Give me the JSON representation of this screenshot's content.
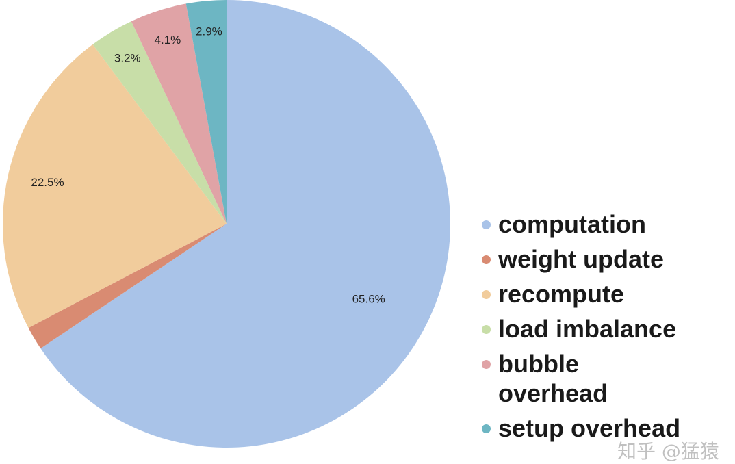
{
  "chart_data": {
    "type": "pie",
    "title": "",
    "slices": [
      {
        "label": "computation",
        "value": 65.6,
        "value_label": "65.6%",
        "color": "#a9c3e8"
      },
      {
        "label": "weight update",
        "value": 1.7,
        "value_label": "",
        "color": "#d98b72"
      },
      {
        "label": "recompute",
        "value": 22.5,
        "value_label": "22.5%",
        "color": "#f1cc9c"
      },
      {
        "label": "load imbalance",
        "value": 3.2,
        "value_label": "3.2%",
        "color": "#c8dea8"
      },
      {
        "label": "bubble overhead",
        "value": 4.1,
        "value_label": "4.1%",
        "color": "#e0a3a6"
      },
      {
        "label": "setup overhead",
        "value": 2.9,
        "value_label": "2.9%",
        "color": "#6db6c3"
      }
    ],
    "start_angle": "12 o'clock",
    "direction": "clockwise",
    "legend_position": "right"
  },
  "legend": {
    "items": [
      {
        "label": "computation",
        "color": "#a9c3e8"
      },
      {
        "label": "weight update",
        "color": "#d98b72"
      },
      {
        "label": "recompute",
        "color": "#f1cc9c"
      },
      {
        "label": "load imbalance",
        "color": "#c8dea8"
      },
      {
        "label": "bubble overhead",
        "color": "#e0a3a6"
      },
      {
        "label": "setup overhead",
        "color": "#6db6c3"
      }
    ]
  },
  "watermark": {
    "text": "知乎 @猛猿"
  }
}
